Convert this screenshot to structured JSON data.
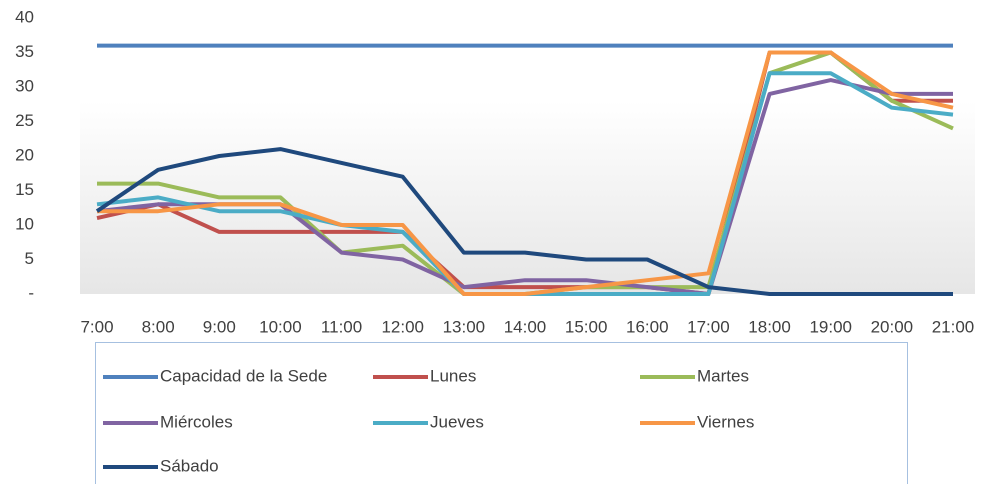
{
  "chart_data": {
    "type": "line",
    "categories": [
      "7:00",
      "8:00",
      "9:00",
      "10:00",
      "11:00",
      "12:00",
      "13:00",
      "14:00",
      "15:00",
      "16:00",
      "17:00",
      "18:00",
      "19:00",
      "20:00",
      "21:00"
    ],
    "series": [
      {
        "name": "Capacidad de la Sede",
        "color": "#4f81bd",
        "values": [
          36,
          36,
          36,
          36,
          36,
          36,
          36,
          36,
          36,
          36,
          36,
          36,
          36,
          36,
          36
        ]
      },
      {
        "name": "Lunes",
        "color": "#c0504d",
        "values": [
          11,
          13,
          9,
          9,
          9,
          9,
          1,
          1,
          1,
          1,
          0,
          35,
          35,
          28,
          28
        ]
      },
      {
        "name": "Martes",
        "color": "#9bbb59",
        "values": [
          16,
          16,
          14,
          14,
          6,
          7,
          0,
          0,
          1,
          1,
          1,
          32,
          35,
          28,
          24
        ]
      },
      {
        "name": "Miércoles",
        "color": "#8064a2",
        "values": [
          12,
          13,
          13,
          13,
          6,
          5,
          1,
          2,
          2,
          1,
          0,
          29,
          31,
          29,
          29
        ]
      },
      {
        "name": "Jueves",
        "color": "#4bacc6",
        "values": [
          13,
          14,
          12,
          12,
          10,
          9,
          0,
          0,
          0,
          0,
          0,
          32,
          32,
          27,
          26
        ]
      },
      {
        "name": "Viernes",
        "color": "#f79646",
        "values": [
          12,
          12,
          13,
          13,
          10,
          10,
          0,
          0,
          1,
          2,
          3,
          35,
          35,
          29,
          27
        ]
      },
      {
        "name": "Sábado",
        "color": "#1f497d",
        "values": [
          12,
          18,
          20,
          21,
          19,
          17,
          6,
          6,
          5,
          5,
          1,
          0,
          0,
          0,
          0
        ]
      }
    ],
    "ylim": [
      0,
      40
    ],
    "yticks": [
      {
        "value": 0,
        "label": "-"
      },
      5,
      10,
      15,
      20,
      25,
      30,
      35,
      40
    ],
    "grid": false,
    "legend": "bottom"
  }
}
